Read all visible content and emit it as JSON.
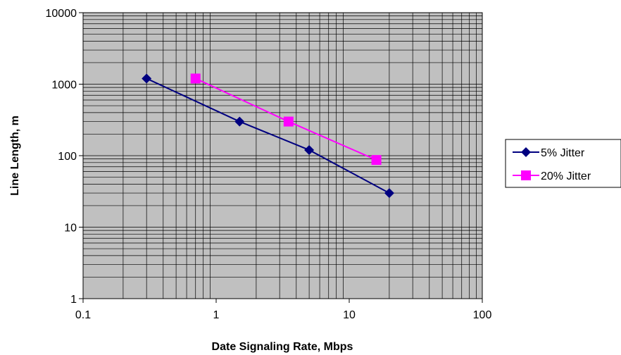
{
  "chart_data": {
    "type": "line",
    "title": "",
    "xlabel": "Date Signaling Rate, Mbps",
    "ylabel": "Line Length, m",
    "xscale": "log",
    "yscale": "log",
    "xlim": [
      0.1,
      100
    ],
    "ylim": [
      1,
      10000
    ],
    "x_ticks": [
      "0.1",
      "1",
      "10",
      "100"
    ],
    "y_ticks": [
      "1",
      "10",
      "100",
      "1000",
      "10000"
    ],
    "grid": true,
    "plot_background": "#c0c0c0",
    "legend_position": "right",
    "series": [
      {
        "name": "5% Jitter",
        "color": "#000080",
        "marker": "diamond",
        "x": [
          0.3,
          1.5,
          5,
          20
        ],
        "y": [
          1200,
          300,
          120,
          30
        ]
      },
      {
        "name": "20% Jitter",
        "color": "#ff00ff",
        "marker": "square",
        "x": [
          0.7,
          3.5,
          16
        ],
        "y": [
          1200,
          300,
          87
        ]
      }
    ]
  }
}
